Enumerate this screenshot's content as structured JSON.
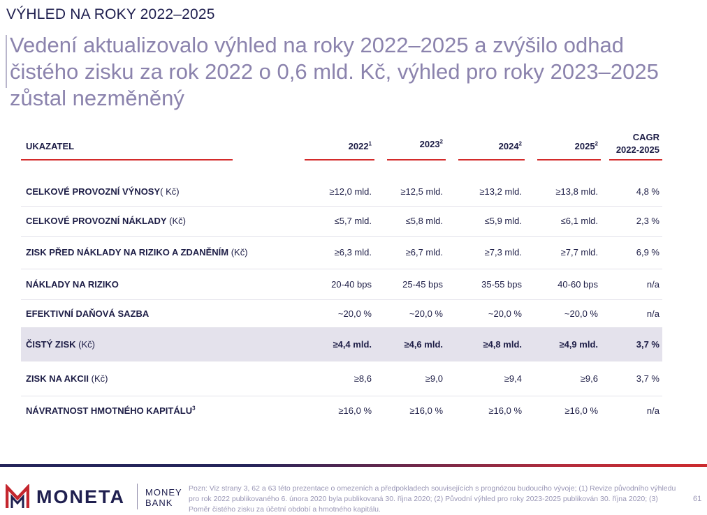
{
  "section_label": "VÝHLED NA ROKY 2022–2025",
  "headline": {
    "line1": "Vedení aktualizovalo výhled na roky 2022–2025 a zvýšilo odhad",
    "line2": "čistého zisku za rok 2022 o 0,6 mld. Kč, výhled pro roky 2023–2025",
    "line3": "zůstal nezměněný"
  },
  "table": {
    "header": {
      "indicator": "UKAZATEL",
      "y2022": "2022",
      "y2022_sup": "1",
      "y2023": "2023",
      "y2023_sup": "2",
      "y2024": "2024",
      "y2024_sup": "2",
      "y2025": "2025",
      "y2025_sup": "2",
      "cagr_line1": "CAGR",
      "cagr_line2": "2022-2025"
    },
    "rows": [
      {
        "label": "CELKOVÉ PROVOZNÍ VÝNOSY",
        "unit": "( Kč)",
        "sup": "",
        "y2022": "≥12,0 mld.",
        "y2023": "≥12,5 mld.",
        "y2024": "≥13,2 mld.",
        "y2025": "≥13,8 mld.",
        "cagr": "4,8 %"
      },
      {
        "label": "CELKOVÉ PROVOZNÍ NÁKLADY",
        "unit": " (Kč)",
        "sup": "",
        "y2022": "≤5,7 mld.",
        "y2023": "≤5,8 mld.",
        "y2024": "≤5,9 mld.",
        "y2025": "≤6,1 mld.",
        "cagr": "2,3 %"
      },
      {
        "label": "ZISK PŘED NÁKLADY NA RIZIKO A ZDANĚNÍM",
        "unit": " (Kč)",
        "sup": "",
        "y2022": "≥6,3 mld.",
        "y2023": "≥6,7 mld.",
        "y2024": "≥7,3 mld.",
        "y2025": "≥7,7 mld.",
        "cagr": "6,9 %"
      },
      {
        "label": "NÁKLADY NA RIZIKO",
        "unit": "",
        "sup": "",
        "y2022": "20-40 bps",
        "y2023": "25-45 bps",
        "y2024": "35-55 bps",
        "y2025": "40-60 bps",
        "cagr": "n/a"
      },
      {
        "label": "EFEKTIVNÍ DAŇOVÁ SAZBA",
        "unit": "",
        "sup": "",
        "y2022": "~20,0 %",
        "y2023": "~20,0 %",
        "y2024": "~20,0 %",
        "y2025": "~20,0 %",
        "cagr": "n/a"
      },
      {
        "label": "ČISTÝ ZISK",
        "unit": " (Kč)",
        "sup": "",
        "y2022": "≥4,4 mld.",
        "y2023": "≥4,6 mld.",
        "y2024": "≥4,8 mld.",
        "y2025": "≥4,9 mld.",
        "cagr": "3,7 %"
      },
      {
        "label": "ZISK NA AKCII",
        "unit": " (Kč)",
        "sup": "",
        "y2022": "≥8,6",
        "y2023": "≥9,0",
        "y2024": "≥9,4",
        "y2025": "≥9,6",
        "cagr": "3,7 %"
      },
      {
        "label": "NÁVRATNOST HMOTNÉHO KAPITÁLU",
        "unit": "",
        "sup": "3",
        "y2022": "≥16,0 %",
        "y2023": "≥16,0 %",
        "y2024": "≥16,0 %",
        "y2025": "≥16,0 %",
        "cagr": "n/a"
      }
    ]
  },
  "footer": {
    "brand": "MONETA",
    "sub_brand_line1": "MONEY",
    "sub_brand_line2": "BANK",
    "note": "Pozn: Viz strany 3, 62 a 63 této prezentace o omezeních a předpokladech souvisejících s prognózou budoucího vývoje; (1) Revize původního výhledu pro rok 2022 publikovaného 6. února 2020 byla publikovaná 30. října 2020; (2) Původní výhled pro roky 2023-2025 publikován 30. října 2020; (3) Poměr čistého zisku za účetní období a hmotného kapitálu.",
    "page_number": "61"
  },
  "colors": {
    "navy": "#1f1f4f",
    "headline": "#8b83ad",
    "accent_red": "#d42b2b",
    "highlight_row": "#e4e2ec"
  }
}
